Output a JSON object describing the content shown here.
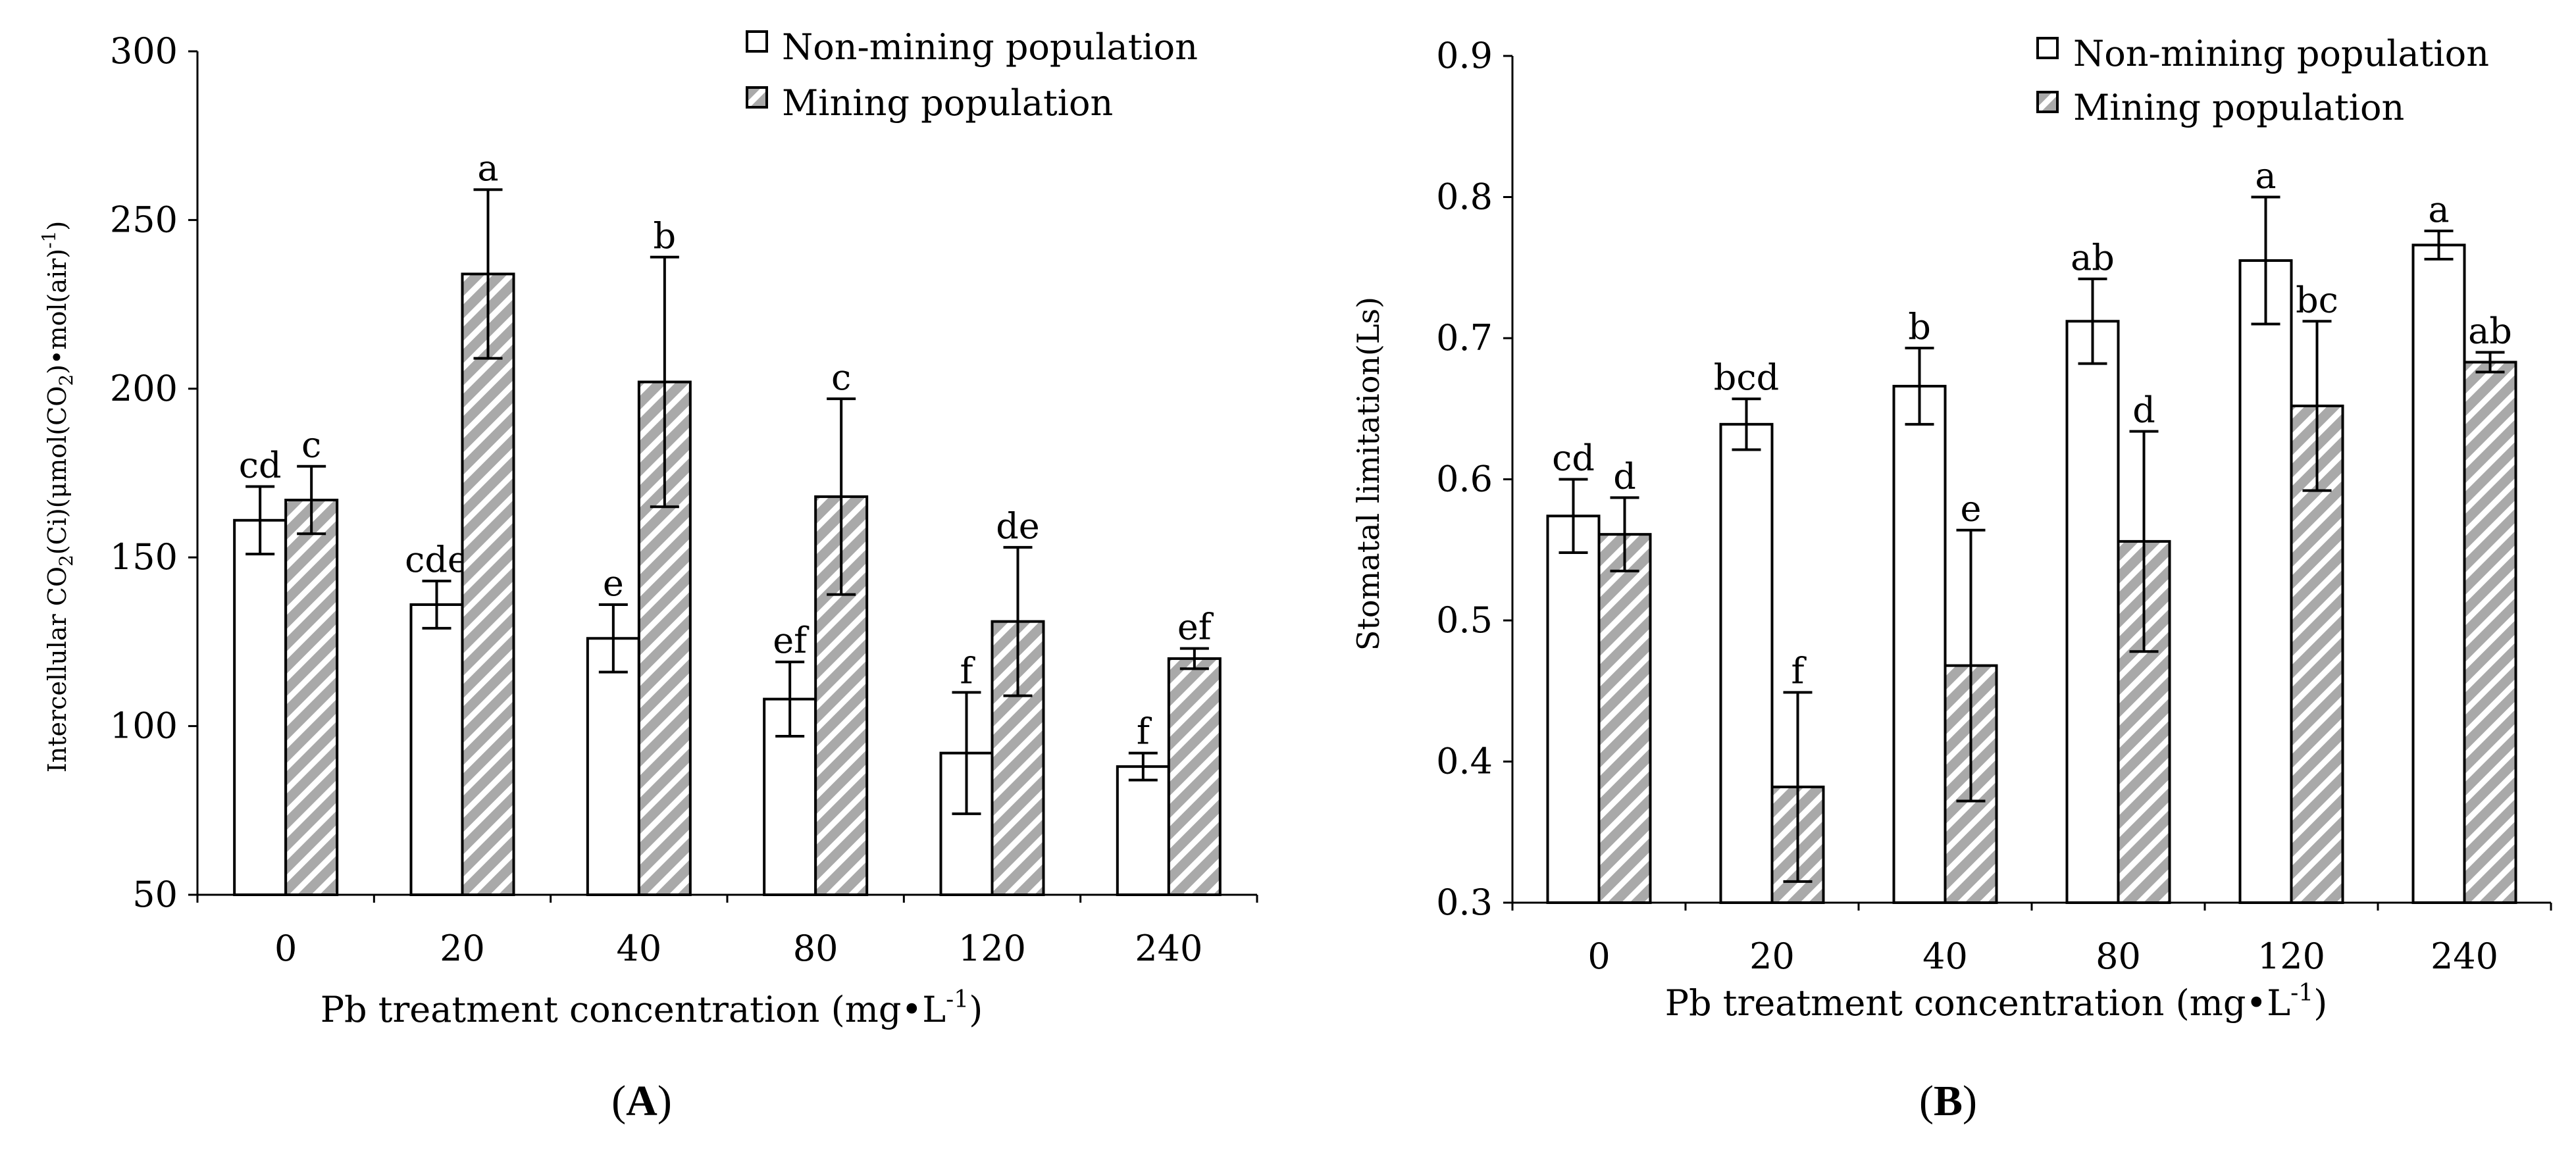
{
  "chart_data": [
    {
      "id": "A",
      "type": "bar",
      "panel_label": "A",
      "title": "",
      "ylabel": "Intercellular CO2(Ci)(μmol(CO2)•mol(air)-1)",
      "ylabel_parts": {
        "pre": "Intercellular CO",
        "sub1": "2",
        "mid": "(Ci)(",
        "mu": "μ",
        "mid2": "mol(CO",
        "sub2": "2",
        "post": ")•mol(air)",
        "sup": "-1",
        "end": ")"
      },
      "xlabel": "Pb treatment concentration (mg•L-1)",
      "xlabel_parts": {
        "pre": "Pb treatment concentration (mg•L",
        "sup": "-1",
        "end": ")"
      },
      "ylim": [
        50,
        300
      ],
      "yticks": [
        50,
        100,
        150,
        200,
        250,
        300
      ],
      "categories": [
        "0",
        "20",
        "40",
        "80",
        "120",
        "240"
      ],
      "legend_position": "top-right",
      "series": [
        {
          "name": "Non-mining population",
          "fill": "white",
          "values": [
            161,
            136,
            126,
            108,
            92,
            88
          ],
          "errors": [
            10,
            7,
            10,
            11,
            18,
            4
          ],
          "letters": [
            "cd",
            "cde",
            "e",
            "ef",
            "f",
            "f"
          ]
        },
        {
          "name": "Mining population",
          "fill": "hatched",
          "values": [
            167,
            234,
            202,
            168,
            131,
            120
          ],
          "errors": [
            10,
            25,
            37,
            29,
            22,
            3
          ],
          "letters": [
            "c",
            "a",
            "b",
            "c",
            "de",
            "ef"
          ]
        }
      ]
    },
    {
      "id": "B",
      "type": "bar",
      "panel_label": "B",
      "title": "",
      "ylabel": "Stomatal limitation(Ls)",
      "xlabel": "Pb treatment concentration (mg•L-1)",
      "xlabel_parts": {
        "pre": "Pb treatment concentration (mg•L",
        "sup": "-1",
        "end": ")"
      },
      "ylim": [
        0.3,
        0.9
      ],
      "yticks": [
        "0.3",
        "0.4",
        "0.5",
        "0.6",
        "0.7",
        "0.8",
        "0.9"
      ],
      "categories": [
        "0",
        "20",
        "40",
        "80",
        "120",
        "240"
      ],
      "legend_position": "top-right",
      "series": [
        {
          "name": "Non-mining population",
          "fill": "white",
          "values": [
            0.574,
            0.639,
            0.666,
            0.712,
            0.755,
            0.766
          ],
          "errors": [
            0.026,
            0.018,
            0.027,
            0.03,
            0.045,
            0.01
          ],
          "letters": [
            "cd",
            "bcd",
            "b",
            "ab",
            "a",
            "a"
          ]
        },
        {
          "name": "Mining population",
          "fill": "hatched",
          "values": [
            0.561,
            0.382,
            0.468,
            0.556,
            0.652,
            0.683
          ],
          "errors": [
            0.026,
            0.067,
            0.096,
            0.078,
            0.06,
            0.007
          ],
          "letters": [
            "d",
            "f",
            "e",
            "d",
            "bc",
            "ab"
          ]
        }
      ]
    }
  ],
  "colors": {
    "bar_outline": "#000000",
    "hatch_bg": "#a9a9a9",
    "hatch_line": "#ffffff"
  }
}
